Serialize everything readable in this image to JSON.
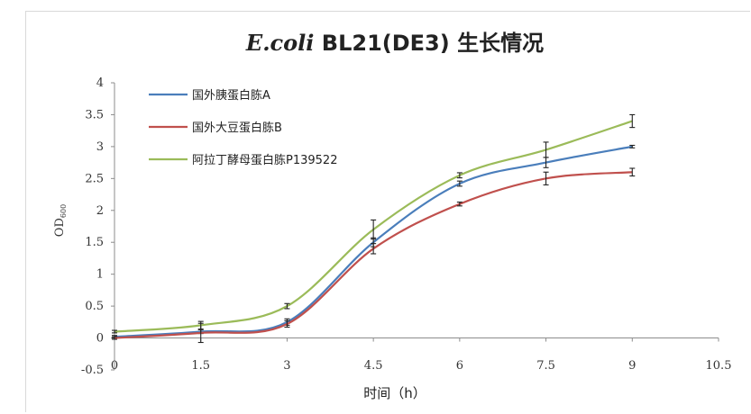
{
  "chart_data": {
    "type": "line",
    "title_italic": "E.coli",
    "title_rest": " BL21(DE3) 生长情况",
    "xlabel": "时间（h）",
    "ylabel": "OD",
    "ylabel_sub": "600",
    "xlim": [
      0,
      10.5
    ],
    "ylim": [
      -0.5,
      4
    ],
    "x_ticks": [
      "0",
      "1.5",
      "3",
      "4.5",
      "6",
      "7.5",
      "9",
      "10.5"
    ],
    "y_ticks": [
      "-0.5",
      "0",
      "0.5",
      "1",
      "1.5",
      "2",
      "2.5",
      "3",
      "3.5",
      "4"
    ],
    "grid": false,
    "legend_position": "top-left",
    "x": [
      0,
      1.5,
      3,
      4.5,
      6,
      7.5,
      9
    ],
    "series": [
      {
        "name": "国外胰蛋白胨A",
        "color": "#4a7ebb",
        "values": [
          0.02,
          0.1,
          0.25,
          1.5,
          2.42,
          2.75,
          3.0
        ],
        "errors": [
          0.02,
          0.03,
          0.05,
          0.07,
          0.04,
          0.08,
          0.02
        ]
      },
      {
        "name": "国外大豆蛋白胨B",
        "color": "#c0504d",
        "values": [
          0.0,
          0.08,
          0.22,
          1.4,
          2.1,
          2.5,
          2.6
        ],
        "errors": [
          0.02,
          0.15,
          0.05,
          0.08,
          0.03,
          0.1,
          0.06
        ]
      },
      {
        "name": "阿拉丁酵母蛋白胨P139522",
        "color": "#9bbb59",
        "values": [
          0.1,
          0.2,
          0.5,
          1.7,
          2.55,
          2.95,
          3.4
        ],
        "errors": [
          0.02,
          0.06,
          0.04,
          0.15,
          0.04,
          0.12,
          0.1
        ]
      }
    ]
  }
}
